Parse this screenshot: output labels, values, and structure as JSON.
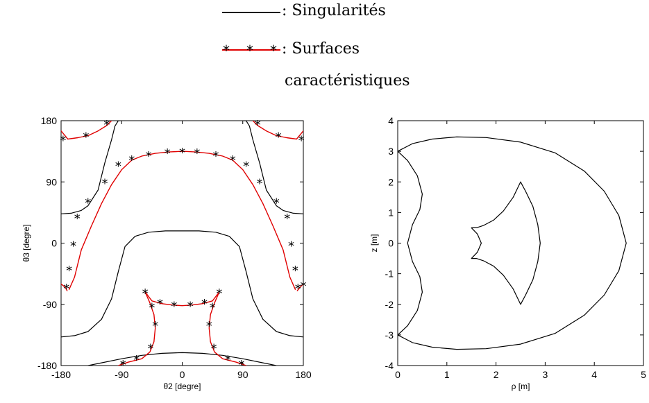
{
  "legend": {
    "entries": [
      {
        "label": ": Singularités",
        "style": "black-line"
      },
      {
        "label": ": Surfaces",
        "label2": "caractéristiques",
        "style": "red-line-asterisk"
      }
    ]
  },
  "colors": {
    "singularity": "#000000",
    "surface": "#e00000",
    "marker": "#000000"
  },
  "chart_data": [
    {
      "type": "line",
      "title": "",
      "xlabel": "θ2 [degre]",
      "ylabel": "θ3 [degre]",
      "xlim": [
        -180,
        180
      ],
      "ylim": [
        -180,
        180
      ],
      "xticks": [
        "-180",
        "-90",
        "0",
        "90",
        "180"
      ],
      "yticks": [
        "-180",
        "-90",
        "0",
        "90",
        "180"
      ],
      "grid": false,
      "series": [
        {
          "name": "Singularités",
          "style": "black-line",
          "x": [
            -180,
            -165,
            -150,
            -140,
            -125,
            -115,
            -105,
            -100,
            -95,
            -93,
            -92
          ],
          "y": [
            43,
            44,
            48,
            55,
            78,
            118,
            152,
            172,
            180,
            180,
            180
          ]
        },
        {
          "name": "Singularités",
          "style": "black-line",
          "x": [
            92,
            93,
            95,
            100,
            105,
            115,
            125,
            140,
            150,
            165,
            180
          ],
          "y": [
            180,
            180,
            180,
            172,
            152,
            118,
            78,
            55,
            48,
            44,
            43
          ]
        },
        {
          "name": "Singularités",
          "style": "black-line",
          "x": [
            -180,
            -160,
            -140,
            -120,
            -105,
            -95,
            -85,
            -70,
            -50,
            -25,
            0,
            25,
            50,
            70,
            85,
            95,
            105,
            120,
            140,
            160,
            180
          ],
          "y": [
            -138,
            -136,
            -130,
            -112,
            -82,
            -42,
            -5,
            10,
            16,
            18,
            18,
            18,
            16,
            10,
            -5,
            -42,
            -82,
            -112,
            -130,
            -136,
            -138
          ]
        },
        {
          "name": "Singularités",
          "style": "black-line",
          "x": [
            -180,
            -150,
            -120,
            -90,
            -60,
            -30,
            0,
            30,
            60,
            90,
            120,
            150,
            180
          ],
          "y": [
            -187,
            -182,
            -176,
            -170,
            -165,
            -162,
            -161,
            -162,
            -165,
            -170,
            -176,
            -182,
            -187
          ]
        },
        {
          "name": "Surfaces caractéristiques",
          "style": "red-line-asterisk",
          "x": [
            -168,
            -160,
            -150,
            -135,
            -120,
            -105,
            -90,
            -75,
            -60,
            -40,
            -20,
            0,
            20,
            40,
            60,
            75,
            90,
            105,
            120,
            135,
            150,
            160,
            168
          ],
          "y": [
            -68,
            -50,
            -10,
            25,
            58,
            86,
            108,
            122,
            128,
            132,
            134,
            135,
            134,
            132,
            128,
            122,
            108,
            86,
            58,
            25,
            -10,
            -50,
            -68
          ],
          "markers_x": [
            -172,
            -168,
            -162,
            -156,
            -140,
            -115,
            -95,
            -75,
            -50,
            -22,
            0,
            22,
            50,
            75,
            95,
            115,
            140,
            156,
            162,
            168,
            172
          ],
          "markers_y": [
            -65,
            -38,
            -2,
            38,
            61,
            90,
            115,
            124,
            130,
            134,
            135,
            134,
            130,
            124,
            115,
            90,
            61,
            38,
            -2,
            -38,
            -65
          ]
        },
        {
          "name": "Surfaces caractéristiques",
          "style": "red-line-asterisk",
          "x": [
            -180,
            -170,
            -155,
            -140,
            -125,
            -112,
            -105
          ],
          "y": [
            165,
            153,
            155,
            158,
            165,
            173,
            180
          ],
          "markers_x": [
            -177,
            -143,
            -112
          ],
          "markers_y": [
            153,
            158,
            176
          ]
        },
        {
          "name": "Surfaces caractéristiques",
          "style": "red-line-asterisk",
          "x": [
            105,
            112,
            125,
            140,
            155,
            170,
            180
          ],
          "y": [
            180,
            173,
            165,
            158,
            155,
            153,
            165
          ],
          "markers_x": [
            112,
            143,
            177
          ],
          "markers_y": [
            176,
            158,
            153
          ]
        },
        {
          "name": "Surfaces caractéristiques",
          "style": "red-line-asterisk",
          "x": [
            -180,
            -174,
            -171
          ],
          "y": [
            -60,
            -65,
            -70
          ],
          "markers_x": [],
          "markers_y": []
        },
        {
          "name": "Surfaces caractéristiques",
          "style": "red-line-asterisk",
          "x": [
            171,
            176,
            180
          ],
          "y": [
            -70,
            -64,
            -60
          ],
          "markers_x": [
            180
          ],
          "markers_y": [
            -61
          ]
        },
        {
          "name": "Surfaces caractéristiques",
          "style": "red-line-asterisk",
          "x": [
            -55,
            -45,
            -30,
            -15,
            0,
            15,
            30,
            45,
            55
          ],
          "y": [
            -72,
            -85,
            -89,
            -91,
            -92,
            -91,
            -89,
            -85,
            -72
          ],
          "markers_x": [
            -55,
            -33,
            -12,
            12,
            33,
            55
          ],
          "markers_y": [
            -72,
            -87,
            -91,
            -91,
            -87,
            -72
          ]
        },
        {
          "name": "Surfaces caractéristiques",
          "style": "red-line-asterisk",
          "x": [
            -55,
            -48,
            -42,
            -40,
            -42,
            -48,
            -60,
            -80,
            -95
          ],
          "y": [
            -72,
            -88,
            -105,
            -125,
            -145,
            -160,
            -170,
            -175,
            -180
          ],
          "markers_x": [
            -45,
            -40,
            -47,
            -68,
            -88
          ],
          "markers_y": [
            -93,
            -120,
            -153,
            -170,
            -177
          ]
        },
        {
          "name": "Surfaces caractéristiques",
          "style": "red-line-asterisk",
          "x": [
            55,
            48,
            42,
            40,
            42,
            48,
            60,
            80,
            95
          ],
          "y": [
            -72,
            -88,
            -105,
            -125,
            -145,
            -160,
            -170,
            -175,
            -180
          ],
          "markers_x": [
            45,
            40,
            47,
            68,
            88
          ],
          "markers_y": [
            -93,
            -120,
            -153,
            -170,
            -177
          ]
        }
      ]
    },
    {
      "type": "line",
      "title": "",
      "xlabel": "ρ [m]",
      "ylabel": "z [m]",
      "xlim": [
        0,
        5
      ],
      "ylim": [
        -4,
        4
      ],
      "xticks": [
        "0",
        "1",
        "2",
        "3",
        "4",
        "5"
      ],
      "yticks": [
        "4",
        "3",
        "2",
        "1",
        "0",
        "-1",
        "-2",
        "-3",
        "-4"
      ],
      "grid": false,
      "series": [
        {
          "name": "outer-boundary",
          "style": "black-line",
          "x": [
            0,
            0.3,
            0.7,
            1.2,
            1.8,
            2.5,
            3.2,
            3.8,
            4.2,
            4.5,
            4.65,
            4.5,
            4.2,
            3.8,
            3.2,
            2.5,
            1.8,
            1.2,
            0.7,
            0.3,
            0
          ],
          "y": [
            3,
            3.25,
            3.4,
            3.47,
            3.45,
            3.3,
            2.95,
            2.35,
            1.7,
            0.9,
            0,
            -0.9,
            -1.7,
            -2.35,
            -2.95,
            -3.3,
            -3.45,
            -3.47,
            -3.4,
            -3.25,
            -3
          ]
        },
        {
          "name": "inner-left-boundary",
          "style": "black-line",
          "x": [
            0,
            0.2,
            0.4,
            0.5,
            0.45,
            0.3,
            0.2,
            0.3,
            0.45,
            0.5,
            0.4,
            0.2,
            0
          ],
          "y": [
            3,
            2.7,
            2.2,
            1.6,
            1.1,
            0.6,
            0,
            -0.6,
            -1.1,
            -1.6,
            -2.2,
            -2.7,
            -3
          ]
        },
        {
          "name": "inner-cusp-shape",
          "style": "black-line",
          "x": [
            2.5,
            2.6,
            2.75,
            2.85,
            2.9,
            2.85,
            2.75,
            2.6,
            2.5,
            2.35,
            2.15,
            1.95,
            1.75,
            1.6,
            1.5,
            1.62,
            1.7,
            1.62,
            1.5,
            1.6,
            1.75,
            1.95,
            2.15,
            2.35,
            2.5
          ],
          "y": [
            2,
            1.7,
            1.2,
            0.6,
            0,
            -0.6,
            -1.2,
            -1.7,
            -2,
            -1.5,
            -1.05,
            -0.75,
            -0.58,
            -0.5,
            -0.5,
            -0.3,
            0,
            0.3,
            0.5,
            0.5,
            0.58,
            0.75,
            1.05,
            1.5,
            2
          ]
        }
      ]
    }
  ]
}
